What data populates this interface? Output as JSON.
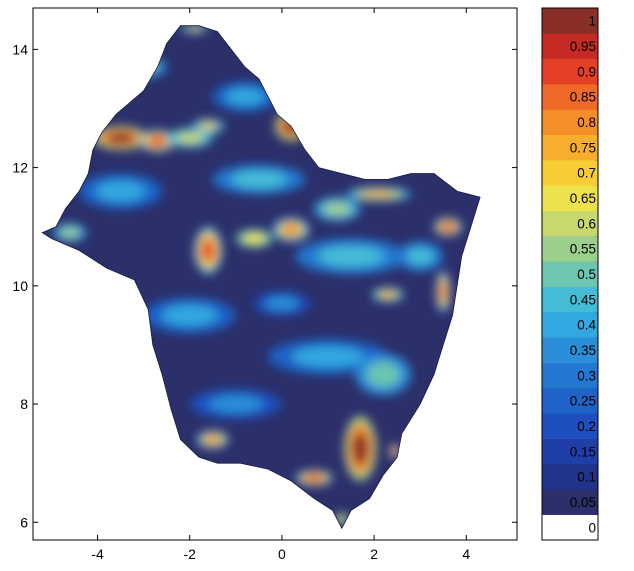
{
  "chart_data": {
    "type": "heatmap",
    "title": "",
    "xlabel": "",
    "ylabel": "",
    "xlim": [
      -5.4,
      5.1
    ],
    "ylim": [
      5.7,
      14.7
    ],
    "xticks": [
      -4,
      -2,
      0,
      2,
      4
    ],
    "yticks": [
      6,
      8,
      10,
      12,
      14
    ],
    "xtick_labels": [
      "-4",
      "-2",
      "0",
      "2",
      "4"
    ],
    "ytick_labels": [
      "6",
      "8",
      "10",
      "12",
      "14"
    ],
    "grid": false,
    "colorbar": {
      "placement": "right",
      "levels": [
        "0",
        "0.05",
        "0.1",
        "0.15",
        "0.2",
        "0.25",
        "0.3",
        "0.35",
        "0.4",
        "0.45",
        "0.5",
        "0.55",
        "0.6",
        "0.65",
        "0.7",
        "0.75",
        "0.8",
        "0.85",
        "0.9",
        "0.95",
        "1"
      ],
      "colors": [
        "#ffffff",
        "#2b2f6a",
        "#22338c",
        "#1e3fa8",
        "#1f4fbf",
        "#1f62c8",
        "#2478d2",
        "#2b8ed9",
        "#33a7e0",
        "#44bcd6",
        "#6cc6b0",
        "#9ccf8c",
        "#c9d86c",
        "#eee24c",
        "#f8cc34",
        "#f7ae2c",
        "#f48e28",
        "#ef6a26",
        "#e44026",
        "#c62a24",
        "#8a2f28"
      ]
    },
    "region_outline": [
      [
        -5.2,
        10.9
      ],
      [
        -4.9,
        11.0
      ],
      [
        -4.7,
        11.3
      ],
      [
        -4.4,
        11.6
      ],
      [
        -4.2,
        11.9
      ],
      [
        -4.1,
        12.3
      ],
      [
        -3.9,
        12.6
      ],
      [
        -3.6,
        12.9
      ],
      [
        -3.3,
        13.1
      ],
      [
        -3.0,
        13.3
      ],
      [
        -2.7,
        13.7
      ],
      [
        -2.5,
        14.1
      ],
      [
        -2.2,
        14.4
      ],
      [
        -1.8,
        14.4
      ],
      [
        -1.4,
        14.3
      ],
      [
        -1.1,
        14.0
      ],
      [
        -0.8,
        13.7
      ],
      [
        -0.5,
        13.5
      ],
      [
        -0.3,
        13.2
      ],
      [
        -0.1,
        12.9
      ],
      [
        0.2,
        12.7
      ],
      [
        0.5,
        12.3
      ],
      [
        0.8,
        12.0
      ],
      [
        1.3,
        11.9
      ],
      [
        1.8,
        11.8
      ],
      [
        2.3,
        11.8
      ],
      [
        2.8,
        11.9
      ],
      [
        3.3,
        11.9
      ],
      [
        3.8,
        11.6
      ],
      [
        4.3,
        11.5
      ],
      [
        4.1,
        11.0
      ],
      [
        3.9,
        10.5
      ],
      [
        3.8,
        10.0
      ],
      [
        3.7,
        9.5
      ],
      [
        3.5,
        9.0
      ],
      [
        3.3,
        8.5
      ],
      [
        3.0,
        8.0
      ],
      [
        2.6,
        7.5
      ],
      [
        2.5,
        7.1
      ],
      [
        2.2,
        6.8
      ],
      [
        1.9,
        6.4
      ],
      [
        1.5,
        6.2
      ],
      [
        1.3,
        5.9
      ],
      [
        1.1,
        6.2
      ],
      [
        0.7,
        6.4
      ],
      [
        0.2,
        6.7
      ],
      [
        -0.3,
        6.9
      ],
      [
        -0.9,
        7.0
      ],
      [
        -1.4,
        7.0
      ],
      [
        -1.8,
        7.1
      ],
      [
        -2.2,
        7.4
      ],
      [
        -2.4,
        7.9
      ],
      [
        -2.6,
        8.5
      ],
      [
        -2.8,
        9.0
      ],
      [
        -2.9,
        9.6
      ],
      [
        -3.2,
        10.1
      ],
      [
        -3.8,
        10.3
      ],
      [
        -4.4,
        10.6
      ],
      [
        -5.0,
        10.8
      ]
    ],
    "features": [
      {
        "x": -3.5,
        "y": 12.5,
        "rx": 0.6,
        "ry": 0.2,
        "value": 1.0
      },
      {
        "x": -2.7,
        "y": 12.45,
        "rx": 0.4,
        "ry": 0.18,
        "value": 0.9
      },
      {
        "x": -2.0,
        "y": 12.5,
        "rx": 0.5,
        "ry": 0.16,
        "value": 0.6
      },
      {
        "x": 0.2,
        "y": 12.7,
        "rx": 0.35,
        "ry": 0.25,
        "value": 1.0
      },
      {
        "x": -1.6,
        "y": 12.7,
        "rx": 0.35,
        "ry": 0.12,
        "value": 0.7
      },
      {
        "x": -3.0,
        "y": 13.7,
        "rx": 0.5,
        "ry": 0.18,
        "value": 0.5
      },
      {
        "x": -1.9,
        "y": 14.35,
        "rx": 0.3,
        "ry": 0.07,
        "value": 0.7
      },
      {
        "x": -1.6,
        "y": 10.6,
        "rx": 0.3,
        "ry": 0.4,
        "value": 0.9
      },
      {
        "x": 0.2,
        "y": 10.95,
        "rx": 0.4,
        "ry": 0.2,
        "value": 0.8
      },
      {
        "x": -0.6,
        "y": 10.8,
        "rx": 0.4,
        "ry": 0.15,
        "value": 0.65
      },
      {
        "x": 2.1,
        "y": 11.55,
        "rx": 0.7,
        "ry": 0.12,
        "value": 0.75
      },
      {
        "x": 3.6,
        "y": 11.0,
        "rx": 0.3,
        "ry": 0.15,
        "value": 0.9
      },
      {
        "x": 3.5,
        "y": 9.9,
        "rx": 0.15,
        "ry": 0.35,
        "value": 0.85
      },
      {
        "x": 2.3,
        "y": 9.85,
        "rx": 0.35,
        "ry": 0.12,
        "value": 0.75
      },
      {
        "x": 1.7,
        "y": 7.25,
        "rx": 0.35,
        "ry": 0.55,
        "value": 1.0
      },
      {
        "x": 0.7,
        "y": 6.75,
        "rx": 0.4,
        "ry": 0.13,
        "value": 0.9
      },
      {
        "x": 2.45,
        "y": 7.2,
        "rx": 0.12,
        "ry": 0.12,
        "value": 0.9
      },
      {
        "x": -1.5,
        "y": 7.4,
        "rx": 0.35,
        "ry": 0.15,
        "value": 0.8
      },
      {
        "x": -3.5,
        "y": 11.6,
        "rx": 0.9,
        "ry": 0.3,
        "value": 0.4
      },
      {
        "x": -0.5,
        "y": 11.8,
        "rx": 1.0,
        "ry": 0.25,
        "value": 0.45
      },
      {
        "x": 1.5,
        "y": 10.5,
        "rx": 1.2,
        "ry": 0.3,
        "value": 0.45
      },
      {
        "x": -2.0,
        "y": 9.5,
        "rx": 1.0,
        "ry": 0.3,
        "value": 0.4
      },
      {
        "x": 1.0,
        "y": 8.8,
        "rx": 1.3,
        "ry": 0.3,
        "value": 0.4
      },
      {
        "x": -1.0,
        "y": 8.0,
        "rx": 1.0,
        "ry": 0.25,
        "value": 0.35
      },
      {
        "x": 2.2,
        "y": 8.5,
        "rx": 0.6,
        "ry": 0.35,
        "value": 0.5
      },
      {
        "x": -0.8,
        "y": 13.2,
        "rx": 0.7,
        "ry": 0.25,
        "value": 0.4
      },
      {
        "x": 1.2,
        "y": 11.3,
        "rx": 0.5,
        "ry": 0.2,
        "value": 0.55
      },
      {
        "x": -4.6,
        "y": 10.9,
        "rx": 0.35,
        "ry": 0.15,
        "value": 0.55
      },
      {
        "x": 3.0,
        "y": 10.5,
        "rx": 0.5,
        "ry": 0.25,
        "value": 0.45
      },
      {
        "x": 0.0,
        "y": 9.7,
        "rx": 0.6,
        "ry": 0.2,
        "value": 0.35
      },
      {
        "x": 1.3,
        "y": 6.05,
        "rx": 0.15,
        "ry": 0.1,
        "value": 0.65
      }
    ]
  }
}
